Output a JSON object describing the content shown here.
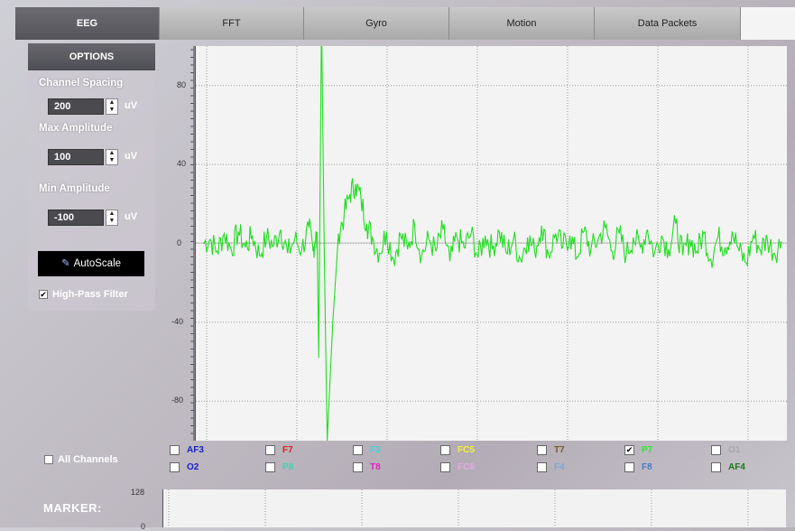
{
  "tabs": [
    {
      "label": "EEG",
      "active": true
    },
    {
      "label": "FFT",
      "active": false
    },
    {
      "label": "Gyro",
      "active": false
    },
    {
      "label": "Motion",
      "active": false
    },
    {
      "label": "Data Packets",
      "active": false
    }
  ],
  "options": {
    "header": "OPTIONS",
    "channel_spacing": {
      "label": "Channel Spacing",
      "value": "200",
      "unit": "uV"
    },
    "max_amplitude": {
      "label": "Max Amplitude",
      "value": "100",
      "unit": "uV"
    },
    "min_amplitude": {
      "label": "Min Amplitude",
      "value": "-100",
      "unit": "uV"
    },
    "autoscale_label": "AutoScale",
    "autoscale_icon": "pencil-icon",
    "high_pass": {
      "label": "High-Pass Filter",
      "checked": true
    }
  },
  "all_channels": {
    "label": "All Channels",
    "checked": false
  },
  "channels": [
    {
      "label": "AF3",
      "color": "#1b20c8",
      "checked": false
    },
    {
      "label": "F7",
      "color": "#e11d1d",
      "checked": false
    },
    {
      "label": "F3",
      "color": "#39d6e0",
      "checked": false
    },
    {
      "label": "FC5",
      "color": "#f5ef3a",
      "checked": false
    },
    {
      "label": "T7",
      "color": "#7a5a2a",
      "checked": false
    },
    {
      "label": "P7",
      "color": "#2ee82e",
      "checked": true
    },
    {
      "label": "O1",
      "color": "#a9a9a9",
      "checked": false
    },
    {
      "label": "O2",
      "color": "#1b20c8",
      "checked": false
    },
    {
      "label": "P8",
      "color": "#39d6b0",
      "checked": false
    },
    {
      "label": "T8",
      "color": "#e020c8",
      "checked": false
    },
    {
      "label": "FC6",
      "color": "#e6a8e6",
      "checked": false
    },
    {
      "label": "F4",
      "color": "#7aa8d8",
      "checked": false
    },
    {
      "label": "F8",
      "color": "#4a78c8",
      "checked": false
    },
    {
      "label": "AF4",
      "color": "#1a7a1a",
      "checked": false
    }
  ],
  "marker": {
    "label": "MARKER:",
    "ytick_top": "128",
    "ytick_bottom": "0"
  },
  "colors": {
    "signal": "#22dd22",
    "tab_active": "#5b5b61",
    "autoscale_bg": "#000000"
  },
  "chart_data": {
    "type": "line",
    "title": "",
    "xlabel": "",
    "ylabel": "",
    "ylim": [
      -100,
      100
    ],
    "yticks": [
      "80",
      "40",
      "0",
      "-40",
      "-80"
    ],
    "grid": true,
    "series": [
      {
        "name": "P7",
        "x": [
          0,
          0.25,
          0.5,
          0.75,
          1,
          1.25,
          1.5,
          1.75,
          2,
          2.25,
          2.5,
          2.75,
          3,
          3.25,
          3.5,
          3.75,
          3.9,
          4.0,
          4.05,
          4.1,
          4.2,
          4.3,
          4.4,
          4.6,
          4.8,
          5,
          5.2,
          5.4,
          5.6,
          5.8,
          6,
          6.25,
          6.5,
          6.75,
          7,
          7.25,
          7.5,
          7.75,
          8,
          8.25,
          8.5,
          8.75,
          9,
          9.25,
          9.5,
          9.75,
          10,
          10.25,
          10.5,
          10.75,
          11,
          11.25,
          11.5,
          11.75,
          12,
          12.25,
          12.5,
          12.75,
          13,
          13.25,
          13.5,
          13.75,
          14,
          14.25,
          14.5,
          14.75,
          15,
          15.25,
          15.5,
          15.75,
          16,
          16.25,
          16.5,
          16.75,
          17,
          17.25,
          17.5,
          17.75,
          18,
          18.25,
          18.5,
          18.75,
          19,
          19.25,
          19.5,
          19.75,
          20,
          20.25,
          20.5
        ],
        "values": [
          0,
          2,
          -4,
          5,
          -3,
          6,
          -2,
          4,
          -6,
          3,
          -1,
          7,
          -5,
          2,
          -3,
          8,
          -4,
          6,
          -2,
          -58,
          120,
          -10,
          -100,
          -40,
          5,
          14,
          25,
          30,
          22,
          10,
          3,
          -5,
          6,
          -8,
          4,
          -3,
          9,
          -6,
          2,
          -4,
          7,
          -9,
          3,
          -2,
          5,
          -7,
          4,
          -3,
          6,
          -5,
          2,
          -8,
          3,
          -4,
          9,
          -6,
          5,
          -2,
          4,
          -7,
          6,
          -3,
          2,
          8,
          -4,
          5,
          -6,
          3,
          -2,
          7,
          -5,
          4,
          -3,
          10,
          -6,
          2,
          -4,
          5,
          -8,
          3,
          -2,
          6,
          -4,
          -10,
          4,
          -3,
          2,
          -5,
          1
        ]
      }
    ]
  }
}
